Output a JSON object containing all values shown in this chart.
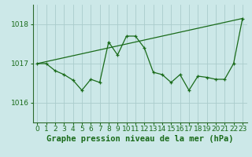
{
  "title": "Graphe pression niveau de la mer (hPa)",
  "background_color": "#cce8e8",
  "grid_color": "#aacccc",
  "line_color": "#1a6b1a",
  "xlim": [
    -0.5,
    23.5
  ],
  "ylim": [
    1015.5,
    1018.5
  ],
  "yticks": [
    1016,
    1017,
    1018
  ],
  "xticks": [
    0,
    1,
    2,
    3,
    4,
    5,
    6,
    7,
    8,
    9,
    10,
    11,
    12,
    13,
    14,
    15,
    16,
    17,
    18,
    19,
    20,
    21,
    22,
    23
  ],
  "line1_x": [
    0,
    1,
    2,
    3,
    4,
    5,
    6,
    7,
    8,
    9,
    10,
    11,
    12,
    13,
    14,
    15,
    16,
    17,
    18,
    19,
    20,
    21,
    22,
    23
  ],
  "line1_y": [
    1017.0,
    1017.0,
    1016.82,
    1016.72,
    1016.58,
    1016.32,
    1016.6,
    1016.52,
    1017.55,
    1017.22,
    1017.7,
    1017.7,
    1017.4,
    1016.78,
    1016.72,
    1016.52,
    1016.72,
    1016.32,
    1016.68,
    1016.65,
    1016.6,
    1016.6,
    1017.0,
    1018.15
  ],
  "line2_x": [
    0,
    23
  ],
  "line2_y": [
    1017.0,
    1018.15
  ],
  "xlabel_fontsize": 7.5,
  "tick_fontsize": 6.5
}
